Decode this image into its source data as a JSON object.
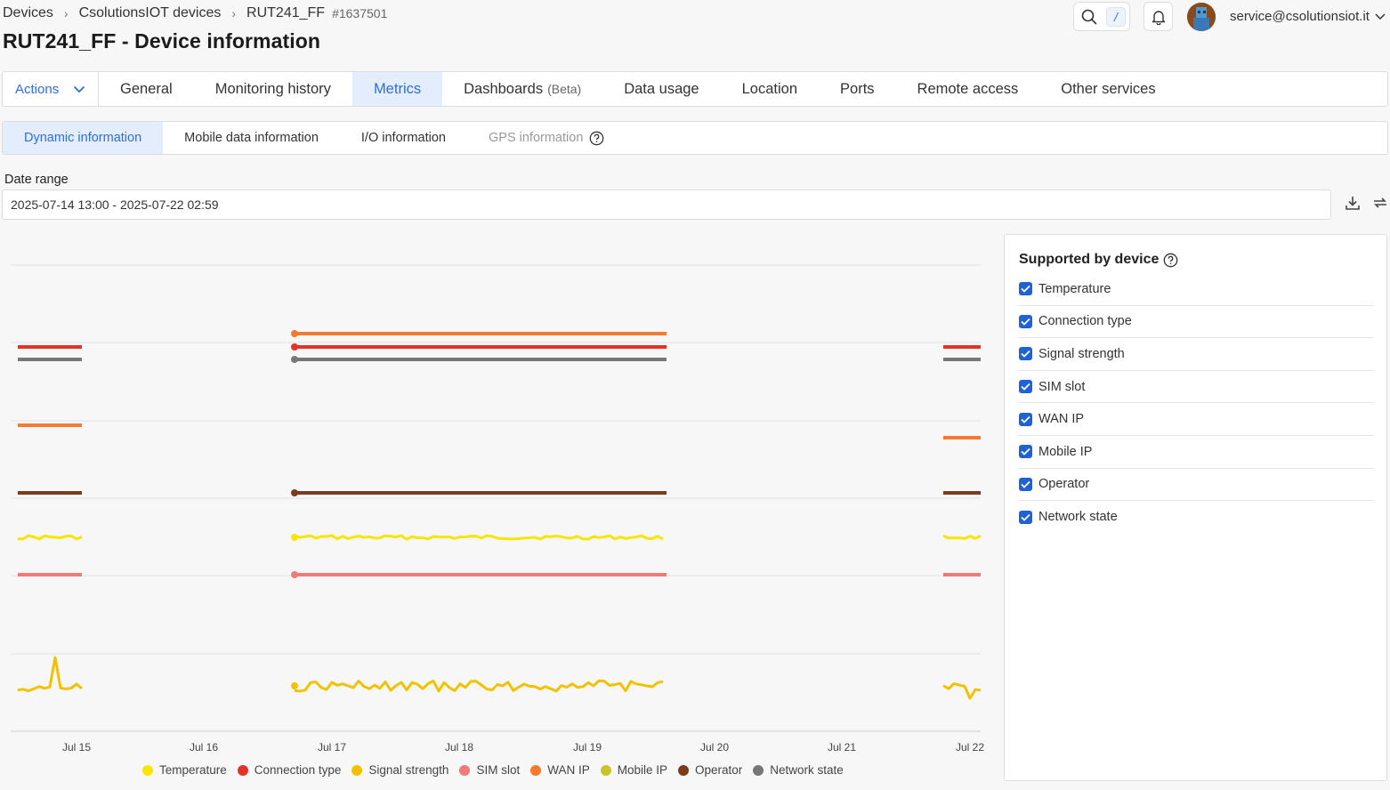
{
  "breadcrumb": {
    "items": [
      "Devices",
      "CsolutionsIOT devices",
      "RUT241_FF"
    ],
    "device_id": "#1637501"
  },
  "page": {
    "title": "RUT241_FF - Device information"
  },
  "header": {
    "search_shortcut": "/",
    "user_email": "service@csolutionsiot.it",
    "icons": [
      "search-icon",
      "bell-icon",
      "avatar",
      "chevron-down-icon"
    ]
  },
  "main_tabs": {
    "actions_label": "Actions",
    "items": [
      {
        "label": "General"
      },
      {
        "label": "Monitoring history"
      },
      {
        "label": "Metrics",
        "active": true
      },
      {
        "label": "Dashboards",
        "suffix": "(Beta)"
      },
      {
        "label": "Data usage"
      },
      {
        "label": "Location"
      },
      {
        "label": "Ports"
      },
      {
        "label": "Remote access"
      },
      {
        "label": "Other services"
      }
    ]
  },
  "sub_tabs": {
    "items": [
      {
        "label": "Dynamic information",
        "active": true
      },
      {
        "label": "Mobile data information"
      },
      {
        "label": "I/O information"
      },
      {
        "label": "GPS information",
        "disabled": true
      }
    ]
  },
  "date_range": {
    "label": "Date range",
    "value": "2025-07-14 13:00 - 2025-07-22 02:59",
    "icons": [
      "download-icon",
      "refresh-icon"
    ]
  },
  "chart_data": {
    "type": "line",
    "x_ticks": [
      "Jul 15",
      "Jul 16",
      "Jul 17",
      "Jul 18",
      "Jul 19",
      "Jul 20",
      "Jul 21",
      "Jul 22"
    ],
    "grid": true,
    "legend_position": "bottom",
    "series": [
      {
        "name": "Temperature",
        "color": "#f7e600"
      },
      {
        "name": "Connection type",
        "color": "#e53228"
      },
      {
        "name": "Signal strength",
        "color": "#f2c200"
      },
      {
        "name": "SIM slot",
        "color": "#f07a7a"
      },
      {
        "name": "WAN IP",
        "color": "#f37a2e"
      },
      {
        "name": "Mobile IP",
        "color": "#c6c629"
      },
      {
        "name": "Operator",
        "color": "#7a3c1c"
      },
      {
        "name": "Network state",
        "color": "#777777"
      }
    ]
  },
  "side_panel": {
    "title": "Supported by device",
    "items": [
      {
        "label": "Temperature",
        "checked": true
      },
      {
        "label": "Connection type",
        "checked": true
      },
      {
        "label": "Signal strength",
        "checked": true
      },
      {
        "label": "SIM slot",
        "checked": true
      },
      {
        "label": "WAN IP",
        "checked": true
      },
      {
        "label": "Mobile IP",
        "checked": true
      },
      {
        "label": "Operator",
        "checked": true
      },
      {
        "label": "Network state",
        "checked": true
      }
    ]
  }
}
